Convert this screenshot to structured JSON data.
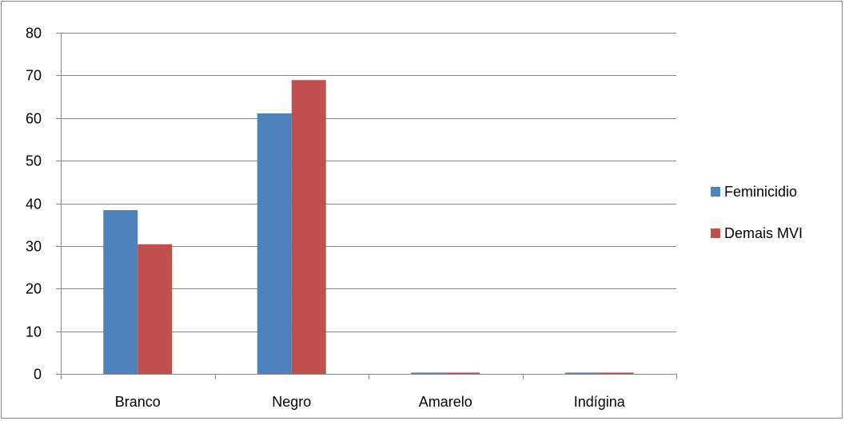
{
  "chart_data": {
    "type": "bar",
    "categories": [
      "Branco",
      "Negro",
      "Amarelo",
      "Indígina"
    ],
    "series": [
      {
        "name": "Feminicidio",
        "values": [
          38.4,
          61.1,
          0.3,
          0.3
        ],
        "color": "#4f81bd"
      },
      {
        "name": "Demais MVI",
        "values": [
          30.4,
          68.9,
          0.3,
          0.3
        ],
        "color": "#c0504d"
      }
    ],
    "ylim": [
      0,
      80
    ],
    "yticks": [
      0,
      10,
      20,
      30,
      40,
      50,
      60,
      70,
      80
    ],
    "grid": true,
    "legend_position": "right",
    "title": "",
    "xlabel": "",
    "ylabel": ""
  }
}
